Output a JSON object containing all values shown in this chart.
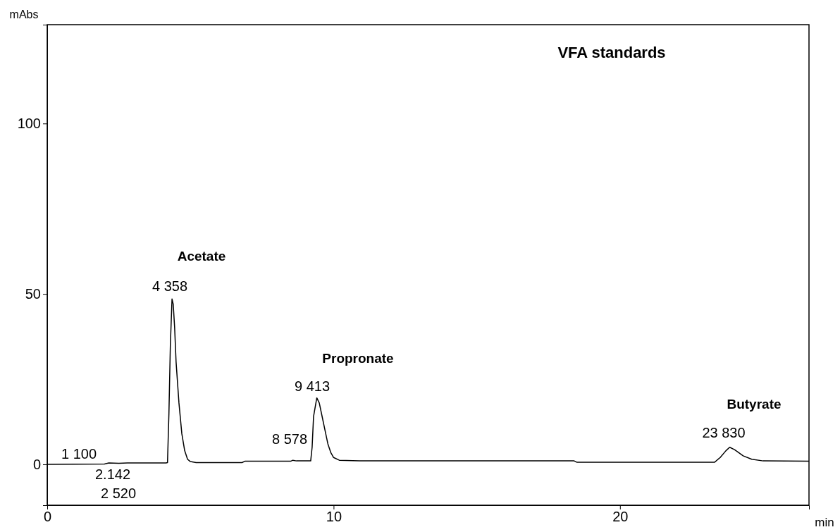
{
  "chart_data": {
    "type": "line",
    "title": "VFA standards",
    "xlabel": "min",
    "ylabel": "mAbs",
    "x": [
      0,
      2.0,
      2.15,
      2.5,
      2.8,
      4.15,
      4.2,
      4.25,
      4.3,
      4.358,
      4.4,
      4.45,
      4.5,
      4.6,
      4.7,
      4.8,
      4.9,
      5.0,
      5.2,
      6.8,
      6.9,
      8.5,
      8.578,
      8.7,
      9.2,
      9.25,
      9.3,
      9.413,
      9.5,
      9.6,
      9.7,
      9.8,
      9.9,
      10.0,
      10.2,
      11,
      18.4,
      18.5,
      23.3,
      23.5,
      23.7,
      23.83,
      24.0,
      24.3,
      24.6,
      25,
      26.6
    ],
    "series": [
      {
        "color": "#000000",
        "values": [
          0,
          0.1,
          0.4,
          0.3,
          0.4,
          0.4,
          0.5,
          15,
          35,
          48.5,
          47,
          40,
          30,
          18,
          9,
          4,
          1.5,
          0.8,
          0.5,
          0.5,
          0.9,
          0.9,
          1.2,
          1.0,
          1.0,
          5,
          14,
          19.5,
          18,
          14,
          10,
          6,
          3.5,
          2,
          1.2,
          1.0,
          1.0,
          0.6,
          0.6,
          2,
          4,
          5,
          4.3,
          2.5,
          1.5,
          1.0,
          0.9
        ]
      }
    ],
    "xlim": [
      0,
      26.6
    ],
    "ylim": [
      -12,
      129
    ],
    "xticks": [
      0,
      10,
      20
    ],
    "yticks": [
      0,
      50,
      100
    ],
    "marker": "none",
    "line_style": "solid",
    "annotations": [
      "Acetate",
      "4 358",
      "Propronate",
      "9 413",
      "Butyrate",
      "23 830",
      "1 100",
      "2.142",
      "2 520",
      "8 578"
    ]
  }
}
